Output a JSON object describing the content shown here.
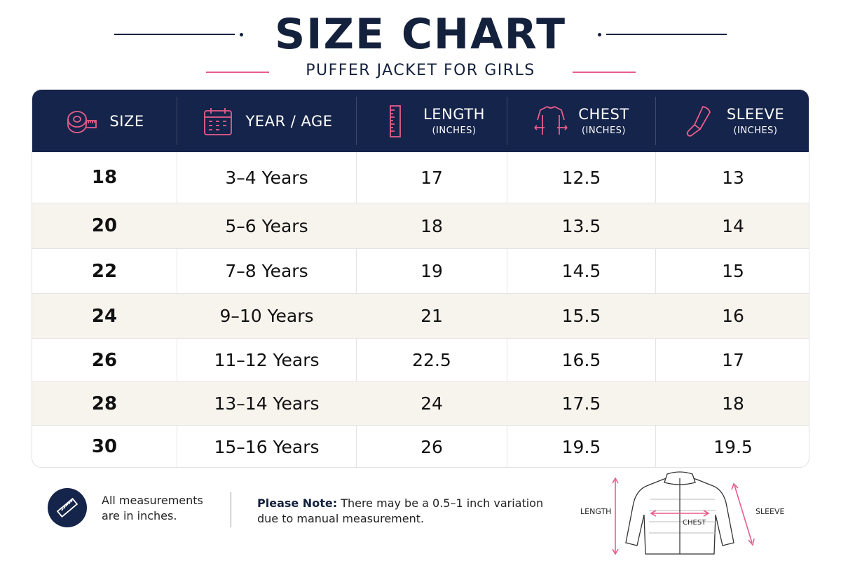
{
  "header": {
    "title": "SIZE CHART",
    "subtitle": "PUFFER JACKET FOR GIRLS"
  },
  "colors": {
    "navy": "#15244a",
    "pink_accent": "#e85d8a",
    "alt_row": "#f7f4ee"
  },
  "table": {
    "columns": [
      {
        "label": "SIZE",
        "unit": "",
        "icon": "tape-measure-icon"
      },
      {
        "label": "YEAR / AGE",
        "unit": "",
        "icon": "calendar-icon"
      },
      {
        "label": "LENGTH",
        "unit": "(INCHES)",
        "icon": "ruler-icon"
      },
      {
        "label": "CHEST",
        "unit": "(INCHES)",
        "icon": "torso-chest-icon"
      },
      {
        "label": "SLEEVE",
        "unit": "(INCHES)",
        "icon": "sleeve-arm-icon"
      }
    ],
    "rows": [
      [
        "18",
        "3–4 Years",
        "17",
        "12.5",
        "13"
      ],
      [
        "20",
        "5–6 Years",
        "18",
        "13.5",
        "14"
      ],
      [
        "22",
        "7–8 Years",
        "19",
        "14.5",
        "15"
      ],
      [
        "24",
        "9–10 Years",
        "21",
        "15.5",
        "16"
      ],
      [
        "26",
        "11–12 Years",
        "22.5",
        "16.5",
        "17"
      ],
      [
        "28",
        "13–14 Years",
        "24",
        "17.5",
        "18"
      ],
      [
        "30",
        "15–16 Years",
        "26",
        "19.5",
        "19.5"
      ]
    ]
  },
  "footer": {
    "measure_note_icon": "ruler-icon",
    "measure_note": "All measurements are in inches.",
    "please_note_label": "Please Note:",
    "please_note_text": "There may be a 0.5–1 inch variation due to manual measurement.",
    "diagram": {
      "icon": "puffer-jacket-icon",
      "length_label": "LENGTH",
      "chest_label": "CHEST",
      "sleeve_label": "SLEEVE"
    }
  }
}
